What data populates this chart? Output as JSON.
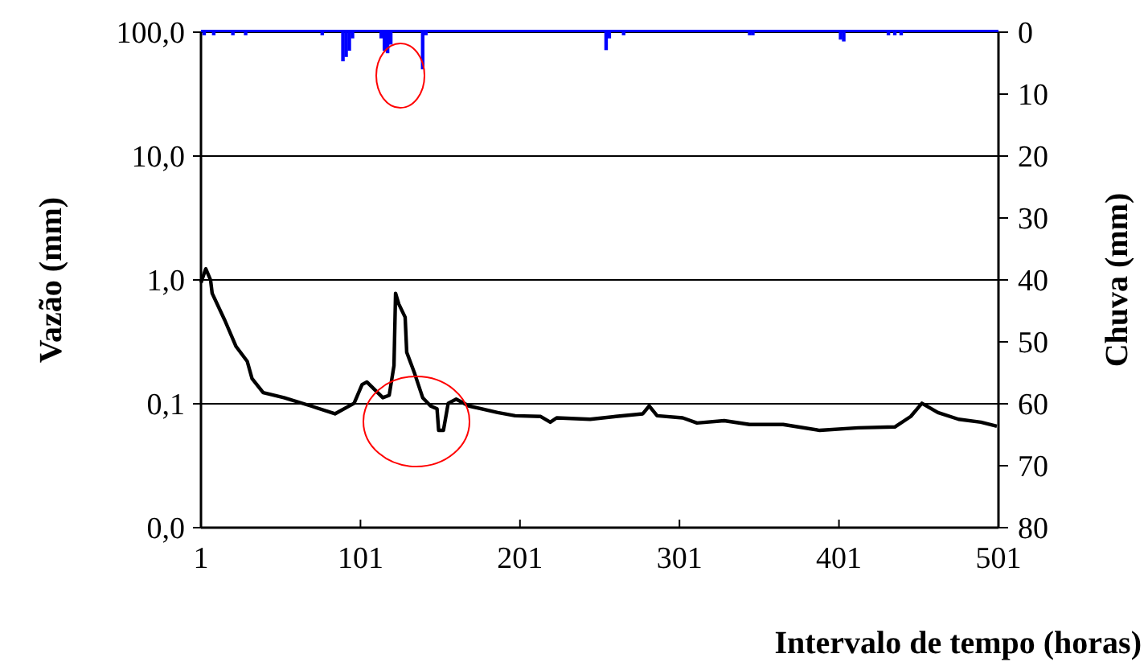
{
  "chart_data": {
    "type": "line",
    "xlabel": "Intervalo de tempo (horas)",
    "ylabel": "Vazão (mm)",
    "y2label": "Chuva (mm)",
    "xlim": [
      1,
      501
    ],
    "xticks": [
      1,
      101,
      201,
      301,
      401,
      501
    ],
    "ylim": [
      0.01,
      100
    ],
    "yticks": [
      {
        "value": 0.01,
        "label": "0,0"
      },
      {
        "value": 0.1,
        "label": "0,1"
      },
      {
        "value": 1,
        "label": "1,0"
      },
      {
        "value": 10,
        "label": "10,0"
      },
      {
        "value": 100,
        "label": "100,0"
      }
    ],
    "y2lim": [
      80,
      0
    ],
    "y2ticks": [
      0,
      10,
      20,
      30,
      40,
      50,
      60,
      70,
      80
    ],
    "log": "y",
    "grid": "y",
    "series": [
      {
        "color": "#000000",
        "x": [
          1,
          4,
          7,
          8,
          16,
          23,
          30,
          33,
          40,
          53,
          70,
          85,
          97,
          102,
          105,
          115,
          119,
          122,
          123,
          125,
          129,
          130,
          135,
          140,
          145,
          149,
          150,
          153,
          156,
          161,
          169,
          187,
          198,
          214,
          220,
          224,
          245,
          261,
          278,
          282,
          287,
          303,
          312,
          329,
          345,
          366,
          389,
          413,
          436,
          446,
          453,
          463,
          476,
          490,
          500
        ],
        "values": [
          0.95,
          1.23,
          1.0,
          0.78,
          0.47,
          0.29,
          0.22,
          0.16,
          0.123,
          0.112,
          0.096,
          0.083,
          0.101,
          0.143,
          0.15,
          0.112,
          0.117,
          0.203,
          0.78,
          0.64,
          0.5,
          0.26,
          0.175,
          0.112,
          0.096,
          0.091,
          0.061,
          0.061,
          0.101,
          0.109,
          0.096,
          0.085,
          0.08,
          0.079,
          0.071,
          0.077,
          0.075,
          0.079,
          0.083,
          0.096,
          0.08,
          0.077,
          0.07,
          0.073,
          0.068,
          0.068,
          0.061,
          0.064,
          0.065,
          0.079,
          0.101,
          0.085,
          0.075,
          0.071,
          0.066
        ]
      },
      {
        "type": "bar",
        "axis": "y2",
        "color": "#0000ff",
        "x": [
          3,
          9,
          21,
          29,
          77,
          90,
          92,
          94,
          96,
          114,
          116,
          118,
          120,
          140,
          142,
          255,
          257,
          266,
          345,
          347,
          402,
          404,
          432,
          436,
          440
        ],
        "values": [
          0.5,
          0.5,
          0.5,
          0.5,
          0.5,
          4.7,
          4,
          3,
          1,
          1,
          3,
          3.4,
          2,
          6,
          0.5,
          2.9,
          1,
          0.5,
          0.5,
          0.5,
          1.2,
          1.5,
          0.5,
          0.5,
          0.5
        ]
      }
    ]
  }
}
